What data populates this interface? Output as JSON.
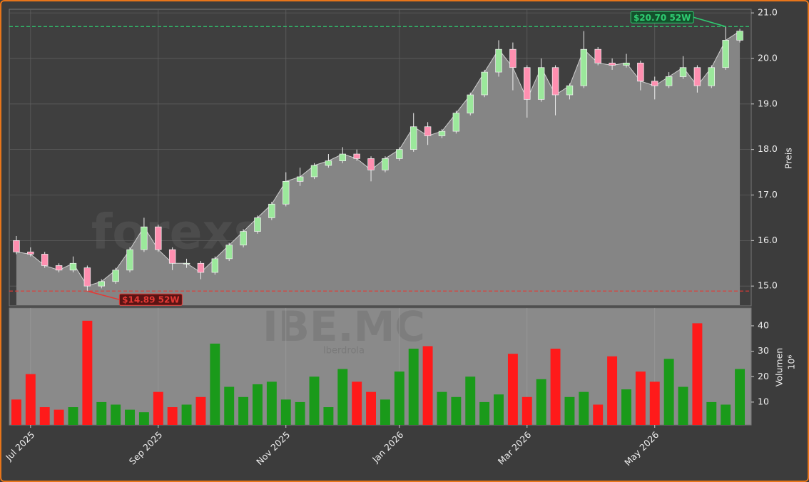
{
  "chart_data": {
    "type": "candlestick",
    "title": "IBE.MC",
    "subtitle": "Iberdrola",
    "watermark": "forexsignale.trade",
    "ylabel": "Preis",
    "y2label": "Volumen",
    "y2scale": "10⁶",
    "categories": [
      null,
      "Jul 2025",
      null,
      null,
      null,
      null,
      null,
      null,
      null,
      null,
      "Sep 2025",
      null,
      null,
      null,
      null,
      null,
      null,
      null,
      null,
      "Nov 2025",
      null,
      null,
      null,
      null,
      null,
      null,
      null,
      "Jan 2026",
      null,
      null,
      null,
      null,
      null,
      null,
      null,
      null,
      "Mar 2026",
      null,
      null,
      null,
      null,
      null,
      null,
      null,
      null,
      "May 2026",
      null,
      null,
      null,
      null,
      null,
      null
    ],
    "open": [
      16.0,
      15.75,
      15.7,
      15.45,
      15.35,
      15.4,
      15.0,
      15.1,
      15.35,
      15.8,
      16.3,
      15.8,
      15.5,
      15.5,
      15.3,
      15.6,
      15.9,
      16.2,
      16.5,
      16.8,
      17.3,
      17.4,
      17.65,
      17.75,
      17.9,
      17.8,
      17.55,
      17.8,
      18.0,
      18.5,
      18.3,
      18.4,
      18.8,
      19.2,
      19.7,
      20.2,
      19.8,
      19.1,
      19.8,
      19.2,
      19.4,
      20.2,
      19.9,
      19.85,
      19.9,
      19.5,
      19.4,
      19.6,
      19.8,
      19.4,
      19.8,
      20.4
    ],
    "high": [
      16.1,
      15.85,
      15.75,
      15.5,
      15.65,
      15.45,
      15.15,
      15.4,
      15.85,
      16.5,
      16.35,
      15.85,
      15.6,
      15.55,
      15.65,
      15.95,
      16.25,
      16.55,
      16.85,
      17.5,
      17.6,
      17.7,
      17.9,
      18.05,
      18.0,
      17.85,
      17.85,
      18.05,
      18.8,
      18.6,
      18.45,
      18.85,
      19.25,
      19.75,
      20.4,
      20.35,
      19.85,
      20.0,
      19.85,
      19.45,
      20.6,
      20.25,
      20.0,
      20.1,
      19.95,
      19.6,
      19.7,
      20.05,
      19.85,
      19.85,
      20.7,
      20.65
    ],
    "low": [
      15.7,
      15.65,
      15.4,
      15.3,
      15.3,
      14.89,
      14.95,
      15.05,
      15.3,
      15.75,
      15.75,
      15.35,
      15.4,
      15.15,
      15.25,
      15.55,
      15.85,
      16.15,
      16.45,
      16.75,
      17.2,
      17.35,
      17.6,
      17.7,
      17.75,
      17.3,
      17.5,
      17.75,
      17.95,
      18.1,
      18.25,
      18.35,
      18.75,
      19.15,
      19.6,
      19.3,
      18.7,
      19.05,
      18.75,
      19.1,
      19.35,
      19.85,
      19.75,
      19.8,
      19.3,
      19.1,
      19.35,
      19.55,
      19.25,
      19.35,
      19.75,
      20.35
    ],
    "close": [
      15.75,
      15.7,
      15.45,
      15.35,
      15.5,
      15.0,
      15.1,
      15.35,
      15.8,
      16.3,
      15.8,
      15.5,
      15.5,
      15.3,
      15.6,
      15.9,
      16.2,
      16.5,
      16.8,
      17.3,
      17.4,
      17.65,
      17.75,
      17.9,
      17.8,
      17.55,
      17.8,
      18.0,
      18.5,
      18.3,
      18.4,
      18.8,
      19.2,
      19.7,
      20.2,
      19.8,
      19.1,
      19.8,
      19.2,
      19.4,
      20.2,
      19.9,
      19.85,
      19.9,
      19.5,
      19.4,
      19.6,
      19.8,
      19.4,
      19.8,
      20.4,
      20.6
    ],
    "volume": [
      11,
      21,
      8,
      7,
      8,
      42,
      10,
      9,
      7,
      6,
      14,
      8,
      9,
      12,
      33,
      16,
      12,
      17,
      18,
      11,
      10,
      20,
      8,
      23,
      18,
      14,
      11,
      22,
      31,
      32,
      14,
      12,
      20,
      10,
      13,
      29,
      12,
      19,
      31,
      12,
      14,
      9,
      28,
      15,
      22,
      18,
      27,
      16,
      41,
      10,
      9,
      23
    ],
    "up_color": "#1a9a1a",
    "down_color": "#ff1a1a",
    "ylim": [
      14.58,
      21.08
    ],
    "yticks": [
      {
        "value": 15,
        "label": "15.0"
      },
      {
        "value": 16,
        "label": "16.0"
      },
      {
        "value": 17,
        "label": "17.0"
      },
      {
        "value": 18,
        "label": "18.0"
      },
      {
        "value": 19,
        "label": "19.0"
      },
      {
        "value": 20,
        "label": "20.0"
      },
      {
        "value": 21,
        "label": "21.0"
      }
    ],
    "y2lim": [
      1,
      47
    ],
    "y2ticks": [
      10,
      20,
      30,
      40
    ],
    "annotations": [
      {
        "value": 20.7,
        "label": "$20.70 52W",
        "color": "#2ecc71"
      },
      {
        "value": 14.89,
        "label": "$14.89 52W",
        "color": "#e53935"
      }
    ],
    "grid": true
  }
}
